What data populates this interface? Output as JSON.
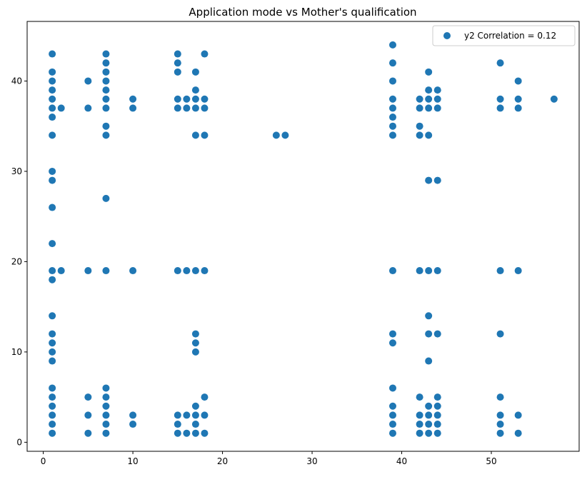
{
  "chart_data": {
    "type": "scatter",
    "title": "Application mode vs Mother's qualification",
    "xlabel": "",
    "ylabel": "",
    "xlim": [
      -1.8,
      59.8
    ],
    "ylim": [
      -1.0,
      46.6
    ],
    "xticks": [
      0,
      10,
      20,
      30,
      40,
      50
    ],
    "yticks": [
      0,
      10,
      20,
      30,
      40
    ],
    "grid": false,
    "legend_position": "top-right",
    "marker_color": "#1f77b4",
    "series": [
      {
        "name": "y2 Correlation = 0.12",
        "points": [
          [
            1,
            1
          ],
          [
            1,
            2
          ],
          [
            1,
            3
          ],
          [
            1,
            4
          ],
          [
            1,
            5
          ],
          [
            1,
            6
          ],
          [
            1,
            9
          ],
          [
            1,
            10
          ],
          [
            1,
            11
          ],
          [
            1,
            12
          ],
          [
            1,
            14
          ],
          [
            1,
            18
          ],
          [
            1,
            19
          ],
          [
            1,
            22
          ],
          [
            1,
            26
          ],
          [
            1,
            29
          ],
          [
            1,
            30
          ],
          [
            1,
            34
          ],
          [
            1,
            36
          ],
          [
            1,
            37
          ],
          [
            1,
            38
          ],
          [
            1,
            39
          ],
          [
            1,
            40
          ],
          [
            1,
            41
          ],
          [
            1,
            43
          ],
          [
            2,
            19
          ],
          [
            2,
            37
          ],
          [
            5,
            1
          ],
          [
            5,
            3
          ],
          [
            5,
            5
          ],
          [
            5,
            19
          ],
          [
            5,
            37
          ],
          [
            5,
            40
          ],
          [
            7,
            1
          ],
          [
            7,
            2
          ],
          [
            7,
            3
          ],
          [
            7,
            4
          ],
          [
            7,
            5
          ],
          [
            7,
            6
          ],
          [
            7,
            19
          ],
          [
            7,
            27
          ],
          [
            7,
            34
          ],
          [
            7,
            35
          ],
          [
            7,
            37
          ],
          [
            7,
            38
          ],
          [
            7,
            39
          ],
          [
            7,
            40
          ],
          [
            7,
            41
          ],
          [
            7,
            42
          ],
          [
            7,
            43
          ],
          [
            10,
            2
          ],
          [
            10,
            3
          ],
          [
            10,
            19
          ],
          [
            10,
            37
          ],
          [
            10,
            38
          ],
          [
            15,
            1
          ],
          [
            15,
            2
          ],
          [
            15,
            3
          ],
          [
            15,
            19
          ],
          [
            15,
            37
          ],
          [
            15,
            38
          ],
          [
            15,
            41
          ],
          [
            15,
            42
          ],
          [
            15,
            43
          ],
          [
            16,
            1
          ],
          [
            16,
            3
          ],
          [
            16,
            19
          ],
          [
            16,
            37
          ],
          [
            16,
            38
          ],
          [
            17,
            1
          ],
          [
            17,
            2
          ],
          [
            17,
            3
          ],
          [
            17,
            4
          ],
          [
            17,
            10
          ],
          [
            17,
            11
          ],
          [
            17,
            12
          ],
          [
            17,
            19
          ],
          [
            17,
            34
          ],
          [
            17,
            37
          ],
          [
            17,
            38
          ],
          [
            17,
            39
          ],
          [
            17,
            41
          ],
          [
            18,
            1
          ],
          [
            18,
            3
          ],
          [
            18,
            5
          ],
          [
            18,
            19
          ],
          [
            18,
            34
          ],
          [
            18,
            37
          ],
          [
            18,
            38
          ],
          [
            18,
            43
          ],
          [
            26,
            34
          ],
          [
            27,
            34
          ],
          [
            39,
            1
          ],
          [
            39,
            2
          ],
          [
            39,
            3
          ],
          [
            39,
            4
          ],
          [
            39,
            6
          ],
          [
            39,
            11
          ],
          [
            39,
            12
          ],
          [
            39,
            19
          ],
          [
            39,
            34
          ],
          [
            39,
            35
          ],
          [
            39,
            36
          ],
          [
            39,
            37
          ],
          [
            39,
            38
          ],
          [
            39,
            40
          ],
          [
            39,
            42
          ],
          [
            39,
            44
          ],
          [
            42,
            1
          ],
          [
            42,
            2
          ],
          [
            42,
            3
          ],
          [
            42,
            5
          ],
          [
            42,
            19
          ],
          [
            42,
            34
          ],
          [
            42,
            35
          ],
          [
            42,
            37
          ],
          [
            42,
            38
          ],
          [
            43,
            1
          ],
          [
            43,
            2
          ],
          [
            43,
            3
          ],
          [
            43,
            4
          ],
          [
            43,
            9
          ],
          [
            43,
            12
          ],
          [
            43,
            14
          ],
          [
            43,
            19
          ],
          [
            43,
            29
          ],
          [
            43,
            34
          ],
          [
            43,
            37
          ],
          [
            43,
            38
          ],
          [
            43,
            39
          ],
          [
            43,
            41
          ],
          [
            44,
            1
          ],
          [
            44,
            2
          ],
          [
            44,
            3
          ],
          [
            44,
            4
          ],
          [
            44,
            5
          ],
          [
            44,
            12
          ],
          [
            44,
            19
          ],
          [
            44,
            29
          ],
          [
            44,
            37
          ],
          [
            44,
            38
          ],
          [
            44,
            39
          ],
          [
            51,
            1
          ],
          [
            51,
            2
          ],
          [
            51,
            3
          ],
          [
            51,
            5
          ],
          [
            51,
            12
          ],
          [
            51,
            19
          ],
          [
            51,
            37
          ],
          [
            51,
            38
          ],
          [
            51,
            42
          ],
          [
            53,
            1
          ],
          [
            53,
            3
          ],
          [
            53,
            19
          ],
          [
            53,
            37
          ],
          [
            53,
            38
          ],
          [
            53,
            40
          ],
          [
            57,
            38
          ]
        ]
      }
    ]
  }
}
